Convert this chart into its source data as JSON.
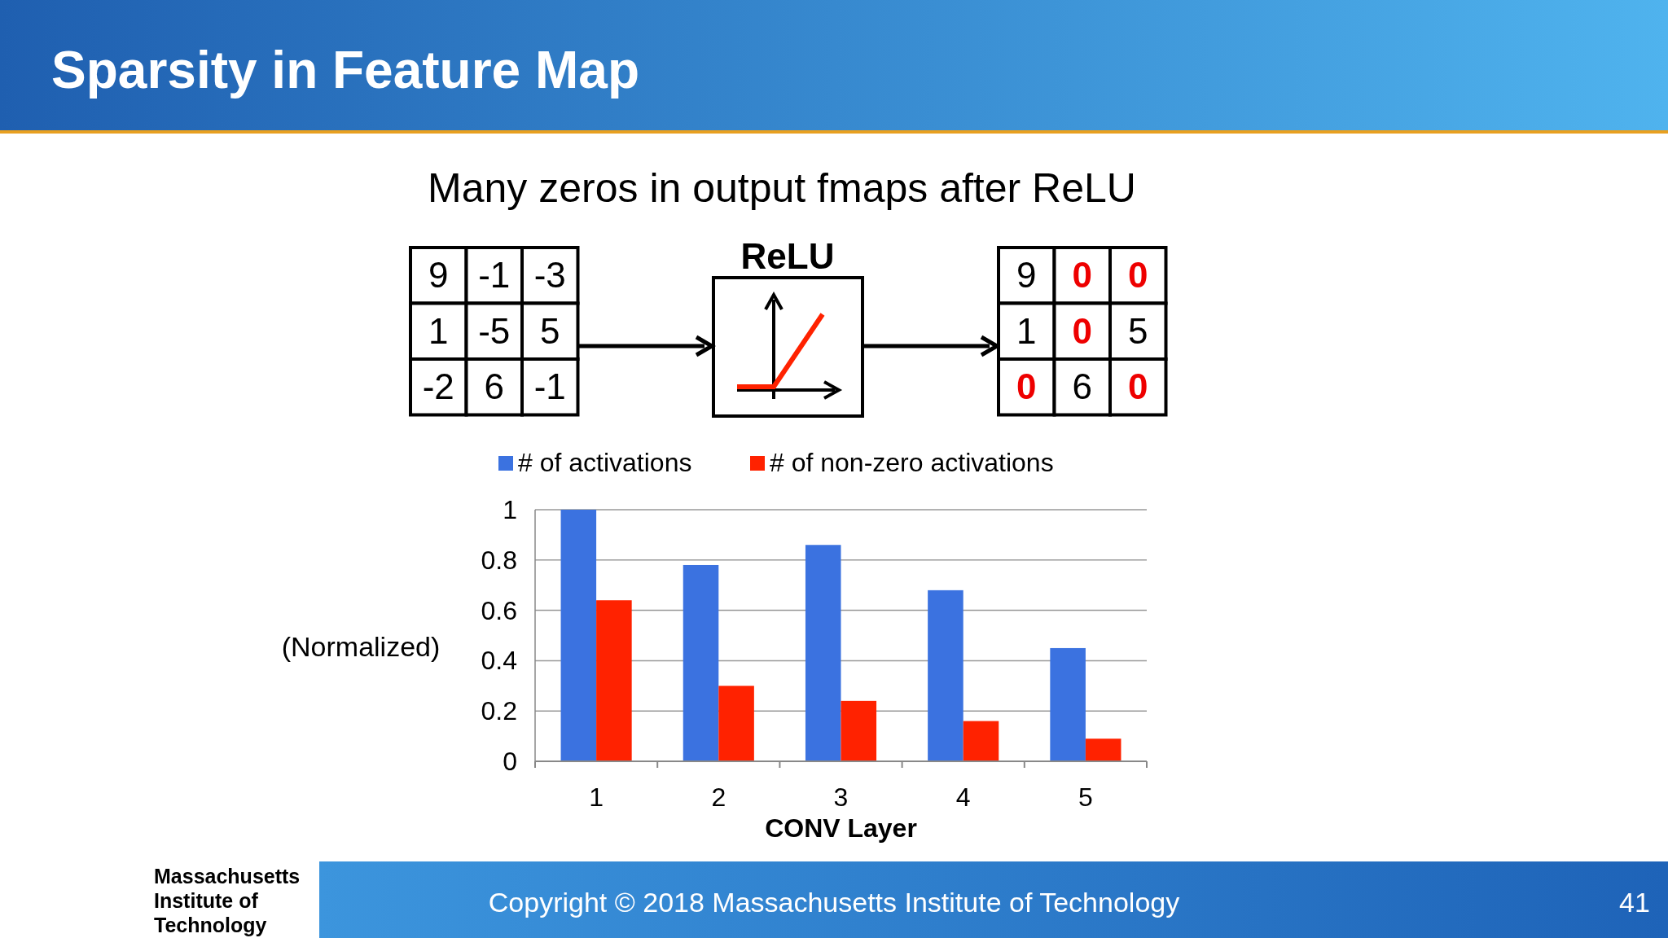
{
  "chart_data": [
    {
      "type": "other",
      "title": "Sparsity in Feature Map",
      "subtitle": "Many zeros in output fmaps after ReLU",
      "annotations": [
        "ReLU",
        "Massachusetts\nInstitute of\nTechnology",
        "Copyright © 2018 Massachusetts Institute of Technology",
        "41"
      ]
    },
    {
      "type": "other",
      "annotations": [
        "9",
        "-1",
        "-3",
        "1",
        "-5",
        "5",
        "-2",
        "6",
        "-1"
      ],
      "colors": [
        "#000000",
        "#000000",
        "#000000",
        "#000000",
        "#000000",
        "#000000",
        "#000000",
        "#000000",
        "#000000"
      ]
    },
    {
      "type": "other",
      "annotations": [
        "9",
        "0",
        "0",
        "1",
        "0",
        "5",
        "0",
        "6",
        "0"
      ],
      "colors": [
        "#000000",
        "#ee0000",
        "#ee0000",
        "#000000",
        "#ee0000",
        "#000000",
        "#ee0000",
        "#000000",
        "#ee0000"
      ]
    },
    {
      "type": "bar",
      "categories": [
        "1",
        "2",
        "3",
        "4",
        "5"
      ],
      "xlabel": "CONV Layer",
      "ylabel": "(Normalized)",
      "ylim": [
        0,
        1
      ],
      "yticks": [
        0,
        0.2,
        0.4,
        0.6,
        0.8,
        1
      ],
      "grid": "y",
      "legend": "top",
      "series": [
        {
          "name": "# of activations",
          "color": "#3b72e0",
          "values": [
            1,
            0.78,
            0.86,
            0.68,
            0.45
          ]
        },
        {
          "name": "# of non-zero activations",
          "color": "#ff2200",
          "values": [
            0.64,
            0.3,
            0.24,
            0.16,
            0.09
          ]
        }
      ]
    }
  ]
}
